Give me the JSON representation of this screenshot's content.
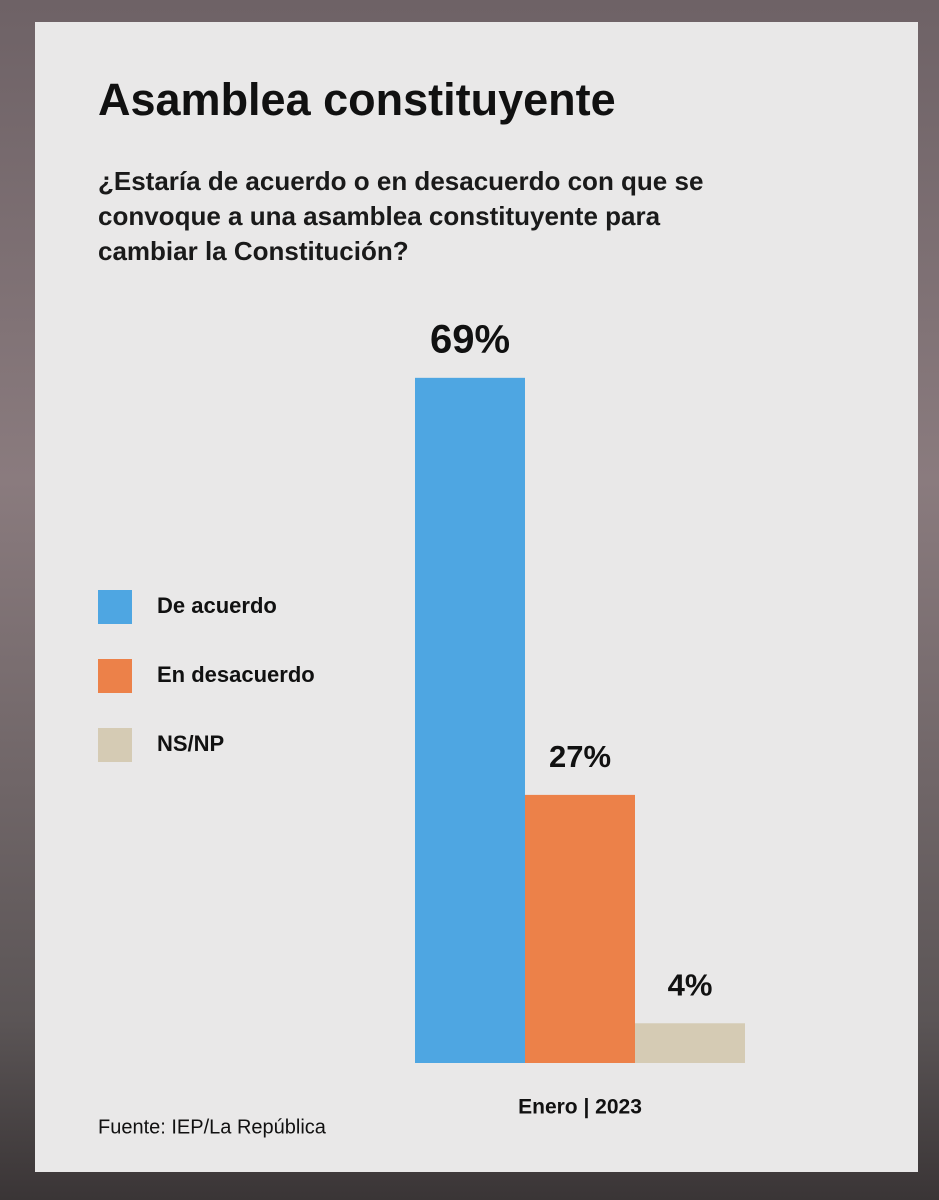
{
  "chart_data": {
    "type": "bar",
    "title": "Asamblea constituyente",
    "subtitle": "¿Estaría de acuerdo o en desacuerdo con que se convoque a una asamblea constituyente para cambiar la Constitución?",
    "categories": [
      "Enero | 2023"
    ],
    "series": [
      {
        "name": "De acuerdo",
        "color": "#4ea6e2",
        "values": [
          69
        ],
        "value_labels": [
          "69%"
        ]
      },
      {
        "name": "En desacuerdo",
        "color": "#ec8149",
        "values": [
          27
        ],
        "value_labels": [
          "27%"
        ]
      },
      {
        "name": "NS/NP",
        "color": "#d5cbb4",
        "values": [
          4
        ],
        "value_labels": [
          "4%"
        ]
      }
    ],
    "source": "Fuente: IEP/La República"
  }
}
